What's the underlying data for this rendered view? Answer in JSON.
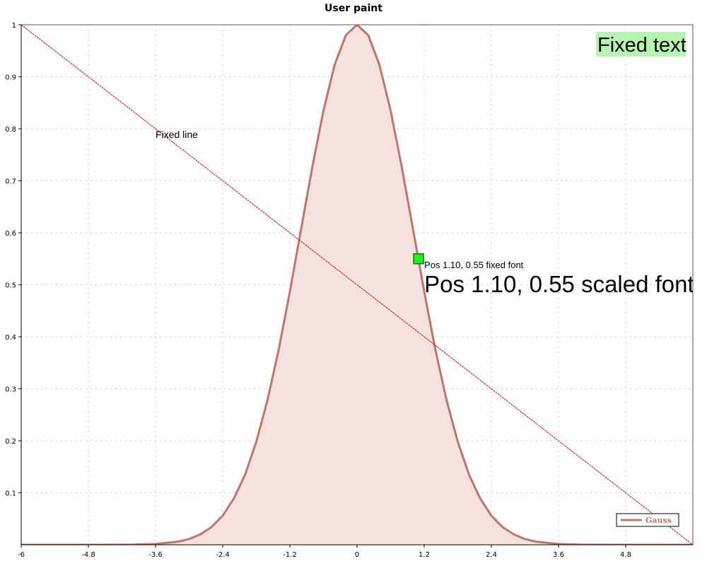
{
  "chart_data": {
    "type": "area",
    "title": "User paint",
    "xlabel": "",
    "ylabel": "",
    "xlim": [
      -6,
      6
    ],
    "ylim": [
      0,
      1
    ],
    "x_ticks": [
      "-6",
      "-4.8",
      "-3.6",
      "-2.4",
      "-1.2",
      "0",
      "1.2",
      "2.4",
      "3.6",
      "4.8"
    ],
    "y_ticks": [
      "0.1",
      "0.2",
      "0.3",
      "0.4",
      "0.5",
      "0.6",
      "0.7",
      "0.8",
      "0.9",
      "1"
    ],
    "grid": true,
    "legend_position": "bottom-right",
    "series": [
      {
        "name": "Gauss",
        "color": "#c0756c",
        "fill_color": "#f5e1de",
        "function": "exp(-x^2/2)",
        "x": [
          -6,
          -5,
          -4.5,
          -4,
          -3.6,
          -3.2,
          -3,
          -2.8,
          -2.6,
          -2.4,
          -2.2,
          -2,
          -1.8,
          -1.6,
          -1.4,
          -1.2,
          -1,
          -0.8,
          -0.6,
          -0.4,
          -0.2,
          0,
          0.2,
          0.4,
          0.6,
          0.8,
          1,
          1.2,
          1.4,
          1.6,
          1.8,
          2,
          2.2,
          2.4,
          2.6,
          2.8,
          3,
          3.2,
          3.6,
          4,
          4.5,
          5,
          6
        ],
        "y": [
          0.0,
          0.0,
          0.0,
          0.0003,
          0.0015,
          0.006,
          0.011,
          0.02,
          0.034,
          0.056,
          0.089,
          0.135,
          0.198,
          0.278,
          0.375,
          0.487,
          0.607,
          0.726,
          0.835,
          0.923,
          0.98,
          1.0,
          0.98,
          0.923,
          0.835,
          0.726,
          0.607,
          0.487,
          0.375,
          0.278,
          0.198,
          0.135,
          0.089,
          0.056,
          0.034,
          0.02,
          0.011,
          0.006,
          0.0015,
          0.0003,
          0.0,
          0.0,
          0.0
        ]
      }
    ],
    "annotations": {
      "fixed_line": {
        "label": "Fixed line",
        "from": [
          -6,
          1
        ],
        "to": [
          6,
          0
        ],
        "color": "#dd0000"
      },
      "point": {
        "x": 1.1,
        "y": 0.55,
        "color": "#22ee22"
      },
      "point_label_fixed": "Pos 1.10, 0.55 fixed font",
      "point_label_scaled": "Pos 1.10, 0.55 scaled font",
      "fixed_text": "Fixed text",
      "fixed_text_background": "#b6f5b0"
    }
  }
}
